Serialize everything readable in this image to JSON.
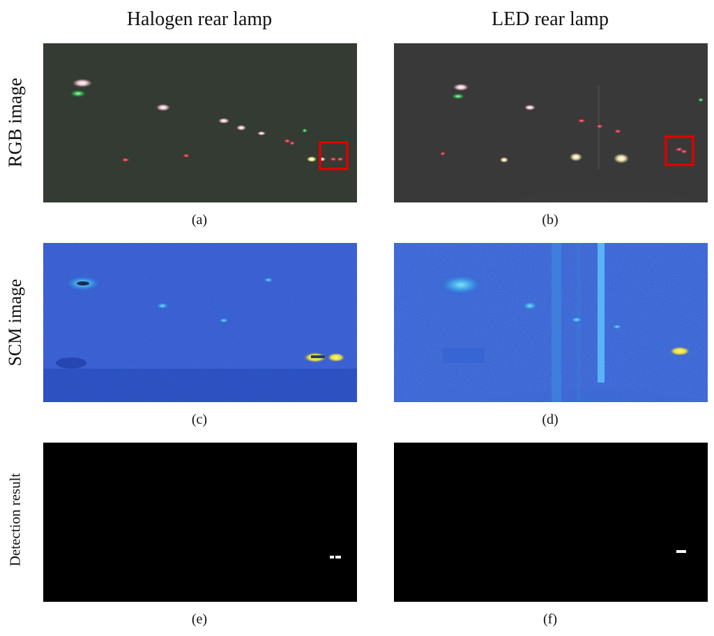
{
  "columns": {
    "left": "Halogen rear lamp",
    "right": "LED rear lamp"
  },
  "rows": {
    "rgb": "RGB image",
    "scm": "SCM image",
    "detection": "Detection result"
  },
  "captions": {
    "a": "(a)",
    "b": "(b)",
    "c": "(c)",
    "d": "(d)",
    "e": "(e)",
    "f": "(f)"
  },
  "colors": {
    "rgb_background_left": "#3a4038",
    "rgb_background_right": "#393939",
    "scm_background": "#2a4fc8",
    "scm_highlight": "#f5e33a",
    "detection_background": "#000000",
    "roi_box": "#e00000"
  }
}
